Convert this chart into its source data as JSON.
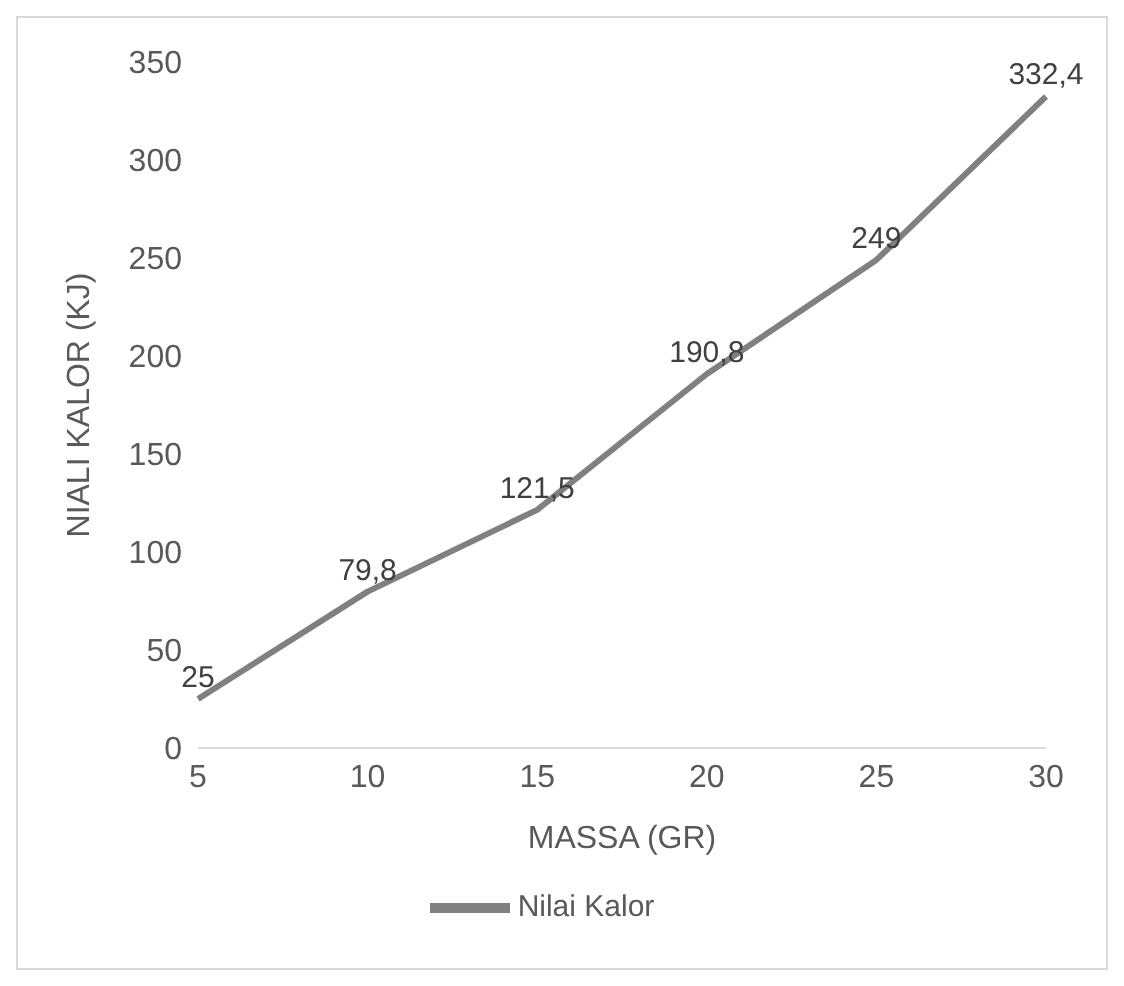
{
  "chart_data": {
    "type": "line",
    "xlabel": "MASSA (GR)",
    "ylabel": "NIALI  KALOR (KJ)",
    "categories": [
      "5",
      "10",
      "15",
      "20",
      "25",
      "30"
    ],
    "series": [
      {
        "name": "Nilai Kalor",
        "color": "#808080",
        "values": [
          25,
          79.8,
          121.5,
          190.8,
          249,
          332.4
        ],
        "value_labels": [
          "25",
          "79,8",
          "121,5",
          "190,8",
          "249",
          "332,4"
        ]
      }
    ],
    "ylim": [
      0,
      350
    ],
    "yticks": [
      0,
      50,
      100,
      150,
      200,
      250,
      300,
      350
    ],
    "grid": false,
    "legend": "bottom",
    "marker": "none",
    "line_style": "solid"
  }
}
